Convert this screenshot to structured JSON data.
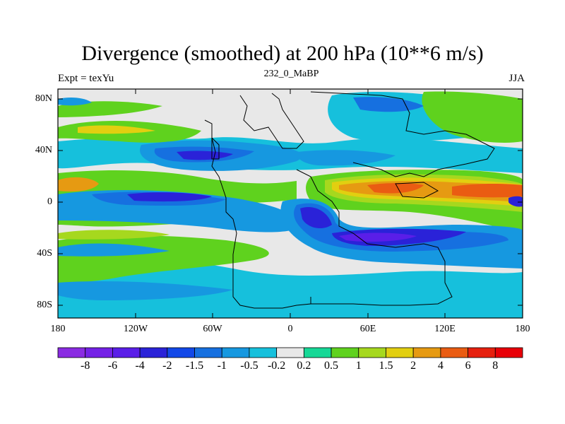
{
  "title": "Divergence (smoothed) at 200 hPa (10**6 m/s)",
  "left_string": "Expt = texYu",
  "center_string": "232_0_MaBP",
  "right_string": "JJA",
  "lat_labels": [
    "80N",
    "40N",
    "0",
    "40S",
    "80S"
  ],
  "lon_labels": [
    "180",
    "120W",
    "60W",
    "0",
    "60E",
    "120E",
    "180"
  ],
  "colorbar": {
    "labels": [
      "-8",
      "-6",
      "-4",
      "-2",
      "-1.5",
      "-1",
      "-0.5",
      "-0.2",
      "0.2",
      "0.5",
      "1",
      "1.5",
      "2",
      "4",
      "6",
      "8"
    ],
    "colors": [
      "#8a2be2",
      "#7421e6",
      "#5a1ee8",
      "#2a22d8",
      "#1248e8",
      "#1670e0",
      "#1698e0",
      "#16c0dc",
      "#e8e8e8",
      "#16d896",
      "#5fd21e",
      "#a6d81e",
      "#e2cf10",
      "#e69a12",
      "#ea5c12",
      "#e6200e",
      "#e80008"
    ]
  },
  "chart_data": {
    "type": "heatmap",
    "variable": "Divergence (smoothed) at 200 hPa",
    "units": "10**6 m/s",
    "experiment": "texYu",
    "case": "232_0_MaBP",
    "season": "JJA",
    "lon_range": [
      -180,
      180
    ],
    "lat_range": [
      -90,
      90
    ],
    "contour_levels": [
      -8,
      -6,
      -4,
      -2,
      -1.5,
      -1,
      -0.5,
      -0.2,
      0.2,
      0.5,
      1,
      1.5,
      2,
      4,
      6,
      8
    ]
  }
}
